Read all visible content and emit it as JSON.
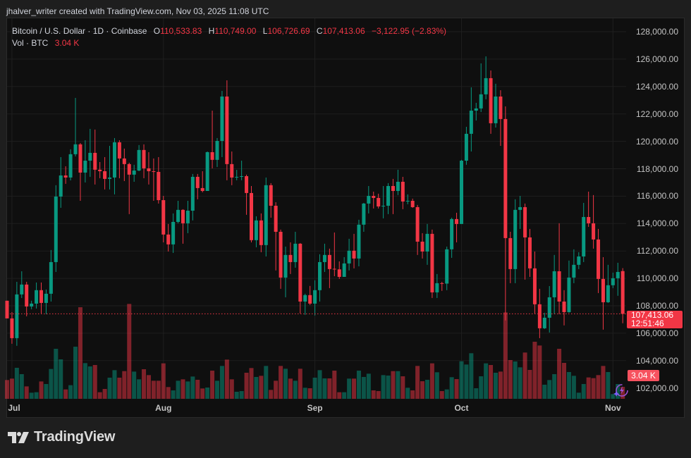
{
  "credit": "jhalver_writer created with TradingView.com, Nov 03, 2025 11:08 UTC",
  "legend": {
    "symbol": "Bitcoin / U.S. Dollar · 1D · Coinbase",
    "open_label": "O",
    "open": "110,533.83",
    "high_label": "H",
    "high": "110,749.00",
    "low_label": "L",
    "low": "106,726.69",
    "close_label": "C",
    "close": "107,413.06",
    "change": "−3,122.95 (−2.83%)",
    "volume_label": "Vol · BTC",
    "volume": "3.04 K"
  },
  "price_label": {
    "price": "107,413.06",
    "countdown": "12:51:46"
  },
  "volume_label": "3.04 K",
  "brand": "TradingView",
  "colors": {
    "up": "#089981",
    "down": "#f23645",
    "background": "#0f0f0f",
    "grid": "#1f1f1f"
  },
  "icons": [
    "tradingview-logo-icon",
    "lightning-icon"
  ],
  "chart_data": {
    "type": "candlestick",
    "title": "Bitcoin / U.S. Dollar · 1D · Coinbase",
    "interval": "1D",
    "ylim": [
      101500,
      128700
    ],
    "y_ticks": [
      {
        "value": 128000,
        "label": "128,000.00"
      },
      {
        "value": 126000,
        "label": "126,000.00"
      },
      {
        "value": 124000,
        "label": "124,000.00"
      },
      {
        "value": 122000,
        "label": "122,000.00"
      },
      {
        "value": 120000,
        "label": "120,000.00"
      },
      {
        "value": 118000,
        "label": "118,000.00"
      },
      {
        "value": 116000,
        "label": "116,000.00"
      },
      {
        "value": 114000,
        "label": "114,000.00"
      },
      {
        "value": 112000,
        "label": "112,000.00"
      },
      {
        "value": 110000,
        "label": "110,000.00"
      },
      {
        "value": 108000,
        "label": "108,000.00"
      },
      {
        "value": 106000,
        "label": "106,000.00"
      },
      {
        "value": 104000,
        "label": "104,000.00"
      },
      {
        "value": 102000,
        "label": "102,000.00"
      }
    ],
    "x_ticks": [
      {
        "label": "Jul",
        "bar": 1
      },
      {
        "label": "Aug",
        "bar": 32
      },
      {
        "label": "Sep",
        "bar": 63
      },
      {
        "label": "Oct",
        "bar": 93
      },
      {
        "label": "Nov",
        "bar": 124
      }
    ],
    "grid": true,
    "last_price": 107413.06,
    "ohlc_columns": [
      "open",
      "high",
      "low",
      "close"
    ],
    "ohlc": [
      [
        108370,
        108370,
        107080,
        107080
      ],
      [
        107080,
        107540,
        105230,
        105640
      ],
      [
        105640,
        109750,
        105080,
        108830
      ],
      [
        108830,
        110520,
        108570,
        109550
      ],
      [
        109550,
        109750,
        107230,
        107950
      ],
      [
        107950,
        108370,
        107750,
        108160
      ],
      [
        108160,
        109700,
        107800,
        109140
      ],
      [
        109140,
        109700,
        107440,
        108210
      ],
      [
        108210,
        109190,
        107390,
        108880
      ],
      [
        108880,
        112070,
        108310,
        111190
      ],
      [
        111190,
        116800,
        110470,
        115970
      ],
      [
        115970,
        118850,
        115150,
        117510
      ],
      [
        117510,
        118180,
        116900,
        117360
      ],
      [
        117360,
        119420,
        117150,
        119060
      ],
      [
        119060,
        123170,
        118900,
        119780
      ],
      [
        119780,
        119880,
        115660,
        117720
      ],
      [
        117720,
        120080,
        117000,
        118590
      ],
      [
        118590,
        120910,
        117410,
        119160
      ],
      [
        119160,
        120860,
        116850,
        117930
      ],
      [
        117930,
        118490,
        117310,
        117820
      ],
      [
        117820,
        118850,
        116490,
        117260
      ],
      [
        117260,
        119670,
        116490,
        117360
      ],
      [
        117360,
        120240,
        116130,
        119930
      ],
      [
        119930,
        120080,
        117310,
        118750
      ],
      [
        118750,
        119470,
        117100,
        118340
      ],
      [
        118340,
        118440,
        114690,
        117570
      ],
      [
        117570,
        118290,
        117050,
        117870
      ],
      [
        117870,
        119730,
        117820,
        119370
      ],
      [
        119370,
        119780,
        117310,
        118030
      ],
      [
        118030,
        119210,
        116850,
        117820
      ],
      [
        117820,
        118750,
        115660,
        117770
      ],
      [
        117770,
        118850,
        115460,
        115710
      ],
      [
        115710,
        116020,
        112630,
        113200
      ],
      [
        113200,
        113970,
        111960,
        112480
      ],
      [
        112480,
        114740,
        111860,
        114120
      ],
      [
        114120,
        115660,
        114020,
        115000
      ],
      [
        115000,
        115050,
        112530,
        114020
      ],
      [
        114020,
        115660,
        113300,
        114940
      ],
      [
        114940,
        117620,
        114230,
        117410
      ],
      [
        117410,
        117620,
        115770,
        116590
      ],
      [
        116590,
        117820,
        116280,
        116380
      ],
      [
        116380,
        119260,
        116380,
        119210
      ],
      [
        119210,
        122240,
        118030,
        118650
      ],
      [
        118650,
        120240,
        118130,
        120030
      ],
      [
        120030,
        123680,
        118850,
        123270
      ],
      [
        123270,
        124450,
        117160,
        118340
      ],
      [
        118340,
        119260,
        116800,
        117360
      ],
      [
        117360,
        117920,
        117160,
        117410
      ],
      [
        117410,
        118590,
        117160,
        117460
      ],
      [
        117460,
        117570,
        114640,
        116230
      ],
      [
        116230,
        116740,
        112630,
        112790
      ],
      [
        112790,
        114530,
        112270,
        114230
      ],
      [
        114230,
        114740,
        111910,
        112430
      ],
      [
        112430,
        117360,
        111600,
        116800
      ],
      [
        116800,
        116950,
        114430,
        115300
      ],
      [
        115300,
        115560,
        110580,
        113400
      ],
      [
        113400,
        113560,
        109240,
        110060
      ],
      [
        110060,
        112320,
        108620,
        111710
      ],
      [
        111710,
        112630,
        110320,
        111190
      ],
      [
        111190,
        113400,
        110780,
        112530
      ],
      [
        112530,
        112580,
        107440,
        108310
      ],
      [
        108310,
        108880,
        107340,
        108780
      ],
      [
        108780,
        109450,
        108060,
        108160
      ],
      [
        108160,
        109860,
        107290,
        109140
      ],
      [
        109140,
        111760,
        108310,
        111190
      ],
      [
        111190,
        112530,
        110470,
        111710
      ],
      [
        111710,
        112170,
        109290,
        110680
      ],
      [
        110700,
        113350,
        110160,
        110660
      ],
      [
        110660,
        111240,
        109960,
        110110
      ],
      [
        110110,
        111550,
        110110,
        111090
      ],
      [
        111090,
        112890,
        110580,
        112020
      ],
      [
        112020,
        113250,
        110730,
        111450
      ],
      [
        111450,
        114280,
        110880,
        113920
      ],
      [
        113920,
        115510,
        113400,
        115460
      ],
      [
        115460,
        116740,
        114740,
        116020
      ],
      [
        116020,
        116330,
        115100,
        115870
      ],
      [
        115870,
        116180,
        115100,
        115250
      ],
      [
        115250,
        116740,
        114380,
        115300
      ],
      [
        115300,
        116950,
        114690,
        116740
      ],
      [
        116740,
        117260,
        114690,
        116380
      ],
      [
        116380,
        117930,
        116080,
        117050
      ],
      [
        117050,
        117410,
        115050,
        115610
      ],
      [
        115610,
        116130,
        115410,
        115660
      ],
      [
        115660,
        115820,
        115150,
        115200
      ],
      [
        115200,
        115360,
        111710,
        112680
      ],
      [
        112680,
        113300,
        111450,
        111960
      ],
      [
        111960,
        113970,
        110990,
        113250
      ],
      [
        113250,
        113560,
        108570,
        108980
      ],
      [
        108980,
        110320,
        108570,
        109650
      ],
      [
        109650,
        109750,
        109090,
        109620
      ],
      [
        109620,
        112320,
        109140,
        112120
      ],
      [
        112120,
        114430,
        111500,
        114330
      ],
      [
        114330,
        114790,
        112630,
        113970
      ],
      [
        113970,
        118650,
        113970,
        118590
      ],
      [
        118590,
        121060,
        118290,
        120550
      ],
      [
        120550,
        123940,
        119260,
        122240
      ],
      [
        122240,
        122810,
        121520,
        122400
      ],
      [
        122400,
        125690,
        122140,
        123430
      ],
      [
        123430,
        126200,
        123070,
        124610
      ],
      [
        124610,
        125170,
        120550,
        121320
      ],
      [
        121320,
        124200,
        121010,
        123270
      ],
      [
        123270,
        123730,
        119670,
        121630
      ],
      [
        121630,
        122550,
        106930,
        112940
      ],
      [
        112940,
        113400,
        109650,
        110680
      ],
      [
        110680,
        115770,
        109650,
        115000
      ],
      [
        115000,
        116020,
        113610,
        115200
      ],
      [
        115200,
        115460,
        109910,
        112990
      ],
      [
        112990,
        113610,
        110110,
        110730
      ],
      [
        110730,
        111960,
        107440,
        108110
      ],
      [
        108110,
        109240,
        105640,
        106360
      ],
      [
        106360,
        107490,
        106310,
        107130
      ],
      [
        107130,
        109440,
        106050,
        108620
      ],
      [
        108620,
        111710,
        107390,
        110520
      ],
      [
        110520,
        114020,
        107390,
        108310
      ],
      [
        108310,
        109140,
        106570,
        107540
      ],
      [
        107540,
        111300,
        107490,
        110060
      ],
      [
        110060,
        112120,
        109650,
        110990
      ],
      [
        110990,
        111910,
        110680,
        111600
      ],
      [
        111600,
        115510,
        111190,
        114480
      ],
      [
        114480,
        116330,
        113760,
        114020
      ],
      [
        114020,
        116080,
        112170,
        112840
      ],
      [
        112840,
        113610,
        108930,
        109960
      ],
      [
        109960,
        111550,
        106260,
        108260
      ],
      [
        108260,
        110990,
        108210,
        109500
      ],
      [
        109500,
        110420,
        109290,
        110010
      ],
      [
        110010,
        111140,
        108730,
        110470
      ],
      [
        110533.83,
        110749,
        106726.69,
        107413.06
      ]
    ],
    "volume_unit": "K BTC",
    "volume": [
      4.76,
      5.12,
      7.86,
      6.25,
      3.15,
      1.55,
      1.67,
      4.4,
      3.75,
      7.56,
      12.68,
      10.0,
      2.38,
      3.45,
      13.21,
      23.21,
      9.05,
      8.21,
      8.57,
      1.67,
      2.5,
      5.36,
      7.26,
      5.36,
      7.02,
      24.05,
      6.9,
      4.94,
      7.5,
      6.01,
      4.58,
      4.58,
      8.99,
      2.98,
      2.14,
      4.58,
      4.94,
      4.4,
      5.65,
      4.82,
      2.62,
      2.86,
      7.14,
      4.58,
      8.33,
      9.94,
      4.94,
      1.79,
      1.96,
      6.61,
      7.8,
      5.54,
      5.83,
      8.33,
      2.26,
      4.58,
      8.33,
      7.62,
      5.12,
      4.58,
      7.62,
      2.8,
      2.68,
      5.36,
      7.26,
      5.18,
      5.18,
      7.14,
      1.67,
      1.67,
      5.12,
      5.12,
      7.14,
      5.54,
      6.37,
      2.14,
      1.96,
      6.01,
      5.89,
      7.02,
      7.02,
      5.71,
      2.8,
      2.14,
      8.33,
      4.46,
      4.82,
      8.99,
      6.73,
      1.96,
      2.38,
      5.48,
      5.0,
      9.52,
      8.69,
      11.55,
      2.68,
      5.71,
      8.99,
      8.57,
      6.61,
      6.9,
      21.9,
      9.82,
      9.46,
      7.98,
      11.73,
      7.32,
      14.46,
      13.51,
      3.57,
      4.76,
      6.25,
      12.68,
      9.11,
      6.79,
      5.83,
      1.55,
      3.75,
      5.42,
      5.24,
      6.01,
      8.33,
      6.79,
      1.19,
      3.75,
      3.04
    ]
  }
}
